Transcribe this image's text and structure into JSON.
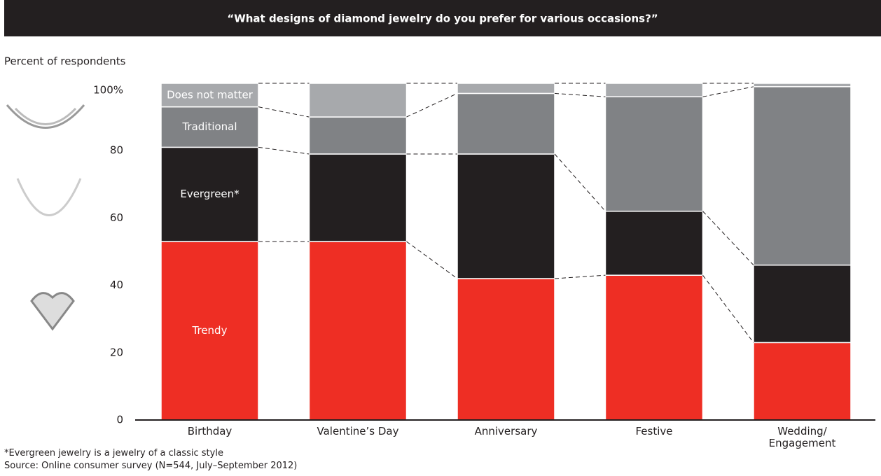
{
  "chart_data": {
    "type": "stacked-bar",
    "title": "“What designs of diamond jewelry do you prefer for various occasions?”",
    "y_label": "Percent of respondents",
    "categories": [
      "Birthday",
      "Valentine’s Day",
      "Anniversary",
      "Festive",
      "Wedding/ Engagement"
    ],
    "series": [
      {
        "name": "Trendy",
        "color": "#ee2e24",
        "values": [
          53,
          53,
          42,
          43,
          23
        ]
      },
      {
        "name": "Evergreen*",
        "color": "#231f20",
        "values": [
          28,
          26,
          37,
          19,
          23
        ]
      },
      {
        "name": "Traditional",
        "color": "#808285",
        "values": [
          12,
          11,
          18,
          34,
          53
        ]
      },
      {
        "name": "Does not matter",
        "color": "#a7a9ac",
        "values": [
          7,
          10,
          3,
          4,
          1
        ]
      }
    ],
    "ylim": [
      0,
      100
    ],
    "yticks": [
      0,
      20,
      40,
      60,
      80,
      {
        "value": 100,
        "label": "100%"
      }
    ],
    "footnote": "*Evergreen jewelry is a jewelry of a classic style",
    "source": "Source: Online consumer survey (N=544, July–September 2012)"
  }
}
